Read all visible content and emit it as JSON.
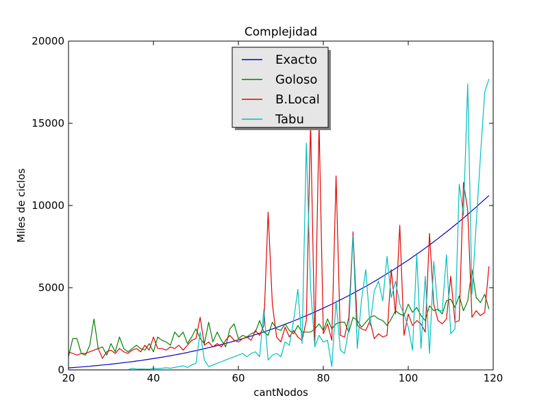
{
  "chart_data": {
    "type": "line",
    "title": "Complejidad",
    "xlabel": "cantNodos",
    "ylabel": "Miles de ciclos",
    "xlim": [
      20,
      120
    ],
    "ylim": [
      0,
      20000
    ],
    "xticks": [
      20,
      40,
      60,
      80,
      100,
      120
    ],
    "yticks": [
      0,
      5000,
      10000,
      15000,
      20000
    ],
    "grid": false,
    "legend": "top-center",
    "x": [
      20,
      21,
      22,
      23,
      24,
      25,
      26,
      27,
      28,
      29,
      30,
      31,
      32,
      33,
      34,
      35,
      36,
      37,
      38,
      39,
      40,
      41,
      42,
      43,
      44,
      45,
      46,
      47,
      48,
      49,
      50,
      51,
      52,
      53,
      54,
      55,
      56,
      57,
      58,
      59,
      60,
      61,
      62,
      63,
      64,
      65,
      66,
      67,
      68,
      69,
      70,
      71,
      72,
      73,
      74,
      75,
      76,
      77,
      78,
      79,
      80,
      81,
      82,
      83,
      84,
      85,
      86,
      87,
      88,
      89,
      90,
      91,
      92,
      93,
      94,
      95,
      96,
      97,
      98,
      99,
      100,
      101,
      102,
      103,
      104,
      105,
      106,
      107,
      108,
      109,
      110,
      111,
      112,
      113,
      114,
      115,
      116,
      117,
      118,
      119
    ],
    "series": [
      {
        "name": "Exacto",
        "color": "#0000bf",
        "values": [
          120,
          140,
          160,
          180,
          200,
          220,
          250,
          270,
          300,
          320,
          350,
          380,
          410,
          440,
          470,
          500,
          540,
          570,
          610,
          650,
          690,
          730,
          770,
          820,
          860,
          910,
          960,
          1010,
          1060,
          1120,
          1170,
          1230,
          1290,
          1350,
          1410,
          1480,
          1540,
          1610,
          1680,
          1750,
          1830,
          1900,
          1980,
          2060,
          2140,
          2230,
          2310,
          2400,
          2490,
          2580,
          2680,
          2780,
          2880,
          2980,
          3080,
          3190,
          3300,
          3410,
          3520,
          3640,
          3760,
          3880,
          4000,
          4130,
          4260,
          4390,
          4520,
          4660,
          4800,
          4940,
          5080,
          5230,
          5380,
          5530,
          5690,
          5850,
          6010,
          6170,
          6340,
          6510,
          6680,
          6860,
          7040,
          7220,
          7410,
          7600,
          7790,
          7990,
          8190,
          8390,
          8600,
          8810,
          9020,
          9240,
          9460,
          9680,
          9910,
          10140,
          10370,
          10600
        ]
      },
      {
        "name": "Goloso",
        "color": "#007f00",
        "values": [
          800,
          1900,
          1900,
          1000,
          900,
          1500,
          3100,
          1300,
          1400,
          900,
          1600,
          1100,
          2000,
          1300,
          1100,
          1300,
          1500,
          1300,
          1200,
          1600,
          1100,
          2000,
          1800,
          1700,
          1500,
          2300,
          2000,
          2300,
          1600,
          2000,
          2500,
          1900,
          1600,
          2900,
          1700,
          2300,
          1800,
          1400,
          2500,
          2800,
          1900,
          2100,
          2000,
          2200,
          2300,
          3000,
          2300,
          2100,
          2900,
          2500,
          2400,
          2800,
          2400,
          2200,
          2700,
          2300,
          2300,
          2300,
          2500,
          2800,
          2400,
          3100,
          2500,
          2800,
          2900,
          2900,
          2300,
          3200,
          3000,
          2600,
          2900,
          3200,
          3300,
          3100,
          3000,
          2700,
          3100,
          3600,
          3400,
          3300,
          4000,
          3500,
          3800,
          3300,
          3000,
          3900,
          3600,
          3700,
          3400,
          4200,
          4300,
          3800,
          4500,
          3600,
          4200,
          6100,
          4400,
          4100,
          4600,
          3700
        ]
      },
      {
        "name": "B.Local",
        "color": "#e00000",
        "values": [
          1100,
          1000,
          900,
          1000,
          1000,
          1100,
          1200,
          1300,
          700,
          1100,
          1200,
          1000,
          1300,
          1100,
          1000,
          1200,
          1300,
          1100,
          1500,
          1200,
          2000,
          1300,
          1300,
          1200,
          1400,
          1300,
          1500,
          1200,
          1500,
          1800,
          1900,
          3200,
          1500,
          1700,
          1400,
          1600,
          1400,
          1800,
          2100,
          1800,
          1700,
          1900,
          2000,
          1800,
          2400,
          2100,
          2700,
          9600,
          4000,
          2000,
          1700,
          2600,
          2000,
          2400,
          2000,
          1800,
          3000,
          15000,
          1600,
          15000,
          2200,
          2800,
          1800,
          11800,
          2100,
          2000,
          3200,
          8400,
          2700,
          2500,
          2400,
          3000,
          1900,
          2200,
          2000,
          2100,
          6100,
          3400,
          8800,
          2100,
          3400,
          2700,
          3000,
          2800,
          2300,
          8300,
          4000,
          3000,
          2800,
          3100,
          5700,
          2900,
          3000,
          11400,
          9700,
          3200,
          3600,
          3300,
          3500,
          6300
        ]
      },
      {
        "name": "Tabu",
        "color": "#00bfbf",
        "values": [
          0,
          0,
          0,
          0,
          0,
          0,
          0,
          0,
          0,
          0,
          0,
          0,
          0,
          0,
          0,
          100,
          50,
          60,
          50,
          40,
          100,
          80,
          100,
          130,
          100,
          150,
          200,
          250,
          150,
          300,
          400,
          2300,
          600,
          200,
          300,
          400,
          500,
          600,
          700,
          800,
          900,
          1000,
          800,
          1000,
          1100,
          800,
          3700,
          600,
          900,
          1000,
          800,
          1700,
          1500,
          3000,
          4900,
          1600,
          13800,
          5000,
          1400,
          2100,
          1700,
          1800,
          200,
          4200,
          1200,
          1000,
          2500,
          8200,
          1300,
          4300,
          6100,
          2700,
          4800,
          5400,
          4200,
          6900,
          4400,
          5400,
          4000,
          3400,
          2600,
          1200,
          7000,
          1300,
          5700,
          1000,
          6600,
          3600,
          3600,
          7000,
          2200,
          2500,
          11300,
          9400,
          17400,
          4600,
          8900,
          13000,
          16900,
          17700
        ]
      }
    ],
    "axis_labels": {
      "xticks": [
        "20",
        "40",
        "60",
        "80",
        "100",
        "120"
      ],
      "yticks": [
        "0",
        "5000",
        "10000",
        "15000",
        "20000"
      ]
    }
  }
}
